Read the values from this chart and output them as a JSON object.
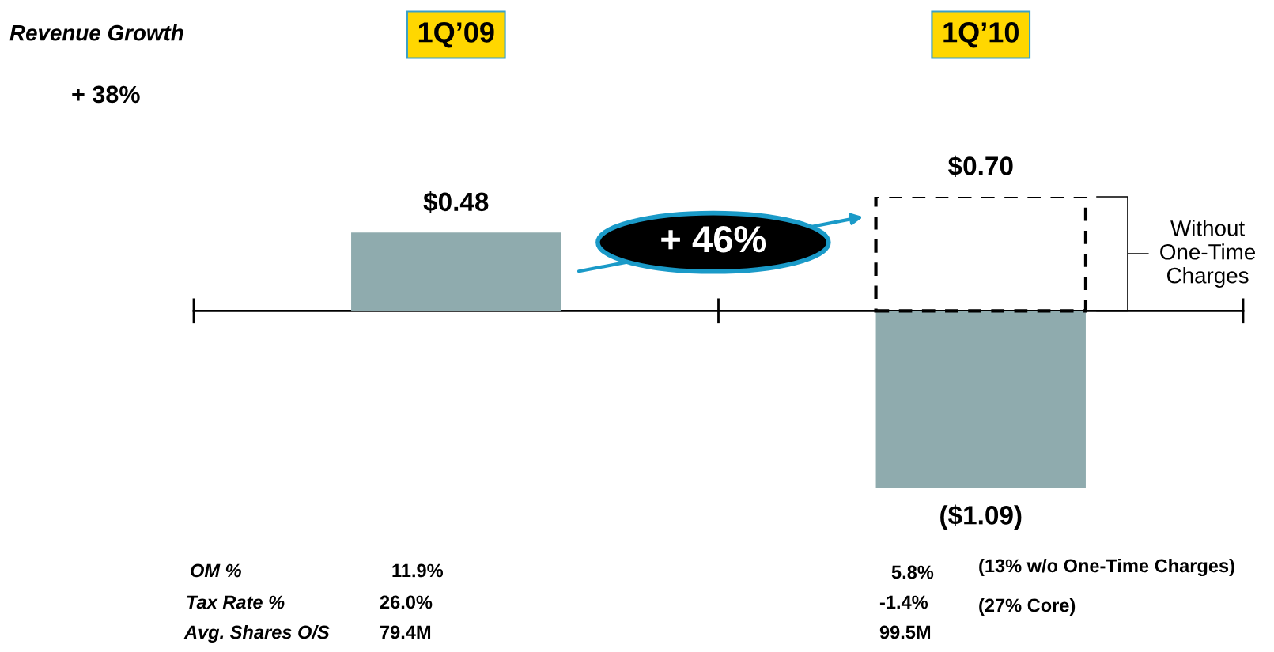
{
  "chart_data": {
    "type": "bar",
    "categories": [
      "1Q’09",
      "1Q’10"
    ],
    "series": [
      {
        "values": [
          0.48,
          -1.09
        ],
        "color": "#8fabae",
        "value_labels": [
          "$0.48",
          "($1.09)"
        ]
      },
      {
        "name": "Without One-Time Charges",
        "values": [
          null,
          0.7
        ],
        "color": "#000000",
        "line_style": "dashed",
        "value_labels": [
          null,
          "$0.70"
        ]
      }
    ],
    "annotations": [
      "Revenue Growth",
      "+ 38%",
      "+ 46%",
      "OM %",
      "11.9%",
      "5.8%",
      "(13% w/o One-Time Charges)",
      "Tax Rate %",
      "26.0%",
      "-1.4%",
      "(27% Core)",
      "Avg. Shares O/S",
      "79.4M",
      "99.5M"
    ],
    "legend": false
  }
}
